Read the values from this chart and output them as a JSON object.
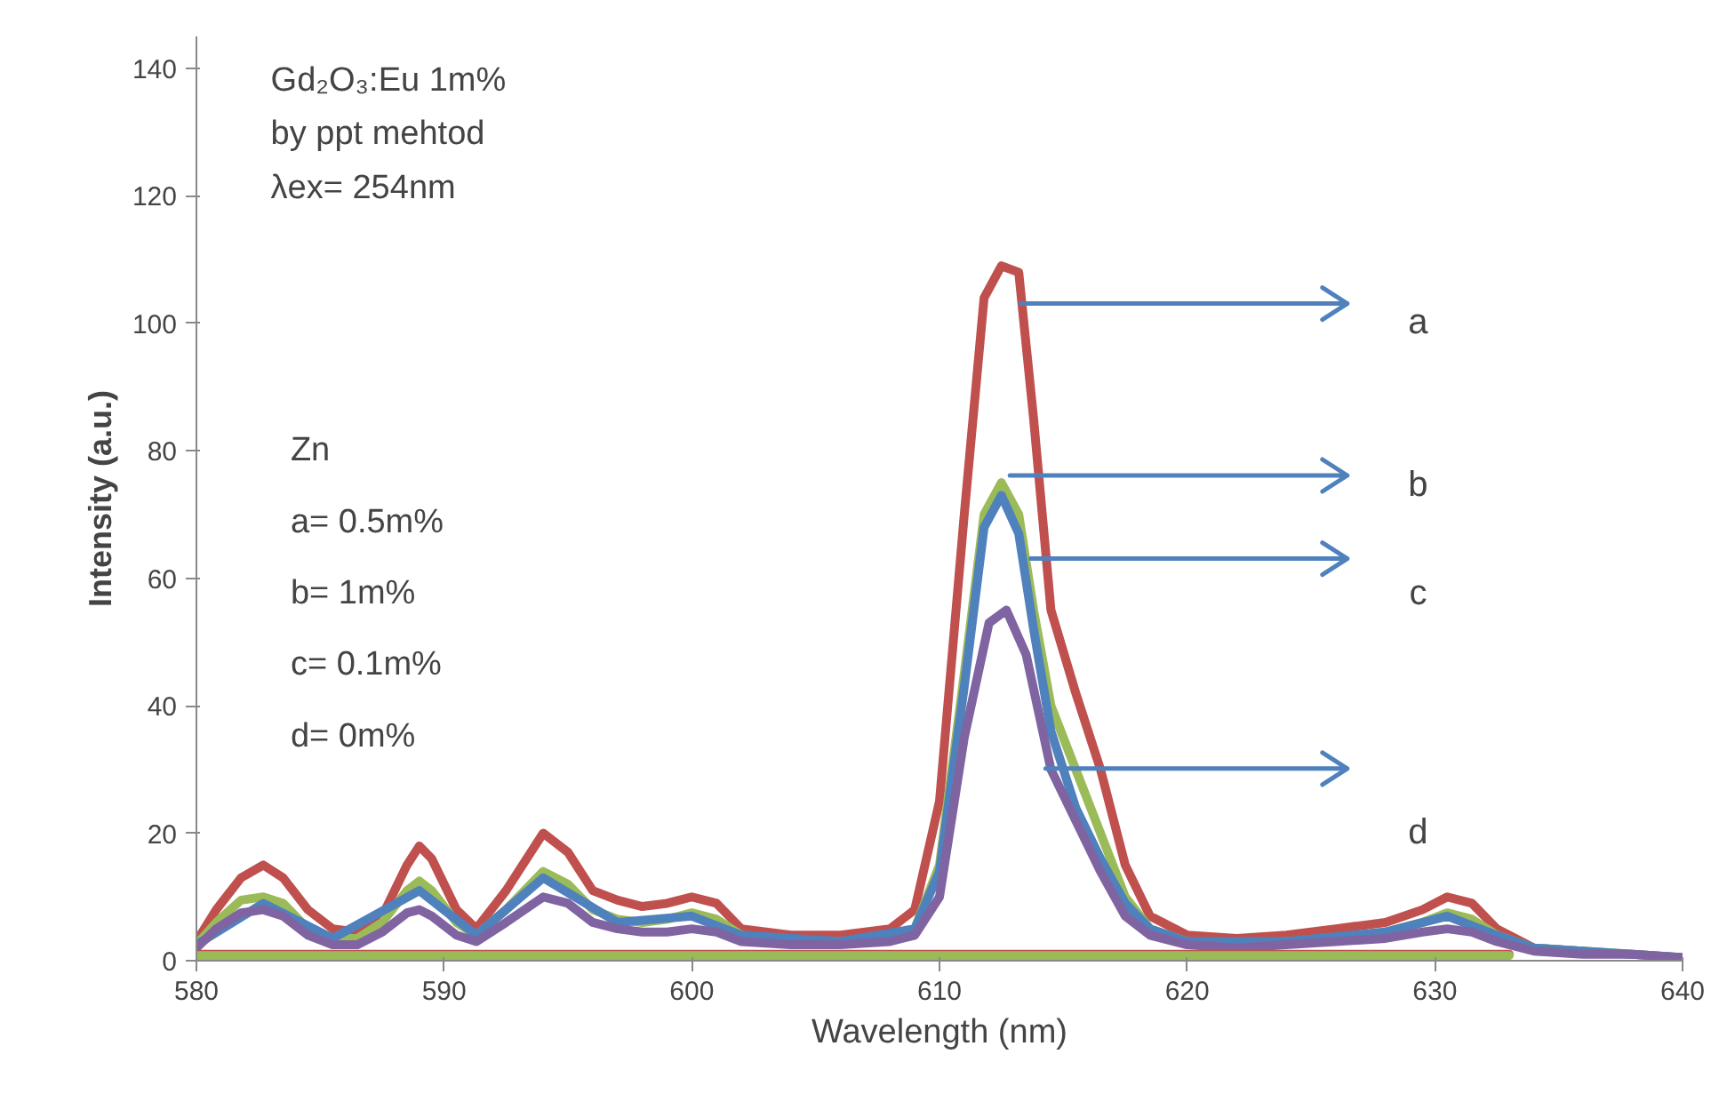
{
  "chart_data": {
    "type": "line",
    "xlabel": "Wavelength (nm)",
    "ylabel": "Intensity (a.u.)",
    "xlim": [
      580,
      640
    ],
    "xticks": [
      580,
      590,
      600,
      610,
      620,
      630,
      640
    ],
    "ylim": [
      0,
      145
    ],
    "yticks": [
      0,
      20,
      40,
      60,
      80,
      100,
      120,
      140
    ],
    "grid": false,
    "marker": "none",
    "line_style": "solid",
    "series": [
      {
        "color": "#c0504d",
        "x": [
          580,
          580.8,
          581.8,
          582.7,
          583.5,
          584.5,
          585.5,
          586.5,
          587.5,
          588.5,
          589,
          589.5,
          590.5,
          591.3,
          592.5,
          594,
          595,
          596,
          597,
          598,
          599,
          600,
          601,
          602,
          604,
          606,
          608,
          609,
          610,
          611,
          611.8,
          612.5,
          613.2,
          613.8,
          614.5,
          615.5,
          616.5,
          617.5,
          618.5,
          620,
          622,
          624,
          626,
          628,
          629.5,
          630.5,
          631.5,
          632.5,
          634,
          636
        ],
        "values": [
          3,
          8,
          13,
          15,
          13,
          8,
          5,
          4.5,
          7,
          15,
          18,
          16,
          8,
          5,
          11,
          20,
          17,
          11,
          9.5,
          8.5,
          9,
          10,
          9,
          5,
          4,
          4,
          5,
          8,
          25,
          70,
          104,
          109,
          108,
          85,
          55,
          42,
          30,
          15,
          7,
          4,
          3.5,
          4,
          5,
          6,
          8,
          10,
          9,
          5,
          2,
          1.5
        ]
      },
      {
        "color": "#9bbb59",
        "x": [
          580,
          580.8,
          581.8,
          582.7,
          583.5,
          584.5,
          585.5,
          586.5,
          587.5,
          588.5,
          589,
          589.5,
          590.5,
          591.3,
          592.5,
          594,
          595,
          596,
          597,
          598,
          599,
          600,
          601,
          602,
          604,
          606,
          608,
          609,
          610,
          611,
          611.8,
          612.5,
          613.2,
          613.8,
          614.5,
          615.5,
          616.5,
          617.5,
          618.5,
          620,
          622,
          624,
          626,
          628,
          629.5,
          630.5,
          631.5,
          632.5,
          634,
          636,
          638,
          640
        ],
        "values": [
          2.5,
          6,
          9.5,
          10,
          9,
          5,
          3.5,
          3.5,
          6,
          11,
          12.5,
          11,
          6,
          4,
          8,
          14,
          12,
          8,
          6.5,
          6,
          6.5,
          7.5,
          6.5,
          4,
          3,
          3,
          3.5,
          5,
          15,
          45,
          70,
          75,
          70,
          55,
          40,
          30,
          20,
          10,
          5,
          3,
          2.5,
          3,
          3.5,
          4.5,
          6,
          7.5,
          6.5,
          4,
          2,
          1.5,
          1,
          0.5
        ]
      },
      {
        "color": "#4f81bd",
        "x": [
          580,
          582.7,
          585.5,
          589,
          591.3,
          594,
          597,
          600,
          602,
          606,
          609,
          610,
          611,
          611.8,
          612.5,
          613.2,
          613.8,
          614.5,
          615.5,
          616.5,
          617.5,
          618.5,
          620,
          624,
          628,
          630.5,
          632.5,
          634,
          640
        ],
        "values": [
          2.5,
          9,
          3.5,
          11,
          4,
          13,
          6,
          7,
          4,
          3,
          5,
          14,
          43,
          68,
          73,
          67,
          52,
          36,
          24,
          16,
          9,
          5,
          3,
          3,
          4.5,
          7,
          4,
          2,
          0.5
        ]
      },
      {
        "color": "#8064a2",
        "x": [
          580,
          580.8,
          581.8,
          582.7,
          583.5,
          584.5,
          585.5,
          586.5,
          587.5,
          588.5,
          589,
          589.5,
          590.5,
          591.3,
          592.5,
          594,
          595,
          596,
          597,
          598,
          599,
          600,
          601,
          602,
          604,
          606,
          608,
          609,
          610,
          611,
          612,
          612.7,
          613.5,
          614.5,
          615.5,
          616.5,
          617.5,
          618.5,
          620,
          622,
          624,
          626,
          628,
          629.5,
          630.5,
          631.5,
          632.5,
          634,
          636,
          638,
          640
        ],
        "values": [
          2,
          5,
          7.5,
          8,
          7,
          4,
          2.5,
          2.5,
          4.5,
          7.5,
          8,
          7,
          4,
          3,
          6,
          10,
          9,
          6,
          5,
          4.5,
          4.5,
          5,
          4.5,
          3,
          2.5,
          2.5,
          3,
          4,
          10,
          35,
          53,
          55,
          48,
          30,
          22,
          14,
          7,
          4,
          2.5,
          2,
          2.5,
          3,
          3.5,
          4.5,
          5,
          4.5,
          3,
          1.5,
          1,
          1,
          0.5
        ]
      },
      {
        "color": "#c0504d",
        "x": [
          580,
          633
        ],
        "values": [
          1,
          1
        ]
      },
      {
        "color": "#9bbb59",
        "x": [
          580,
          633
        ],
        "values": [
          0.8,
          0.8
        ]
      }
    ],
    "annotations": [
      "Gd₂O₃:Eu 1m%",
      "by ppt mehtod",
      "λex= 254nm",
      "Zn",
      "a= 0.5m%",
      "b= 1m%",
      "c= 0.1m%",
      "d= 0m%",
      "a",
      "b",
      "c",
      "d"
    ]
  }
}
